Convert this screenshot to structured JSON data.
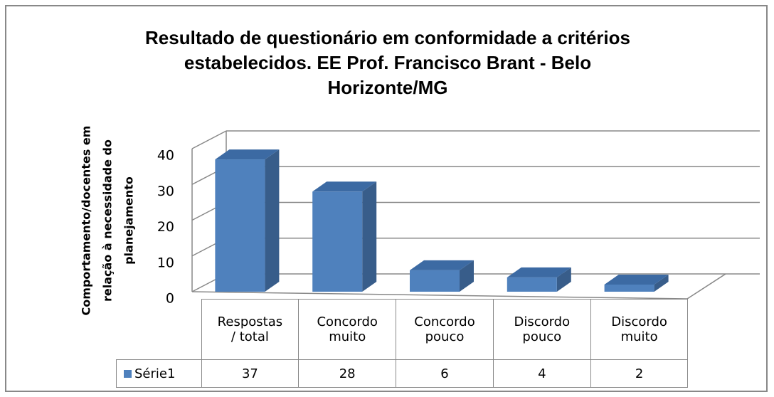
{
  "chart_data": {
    "type": "bar",
    "title": [
      "Resultado de questionário em conformidade a critérios",
      "estabelecidos. EE Prof. Francisco Brant - Belo",
      "Horizonte/MG"
    ],
    "y_label": [
      "Comportamento/docentes  em",
      "relação à necessidade do",
      "planejamento"
    ],
    "categories": [
      "Respostas\n/  total",
      "Concordo\nmuito",
      "Concordo\npouco",
      "Discordo\npouco",
      "Discordo\nmuito"
    ],
    "series": [
      {
        "name": "Série1",
        "color": "#4f81bd",
        "values": [
          37,
          28,
          6,
          4,
          2
        ]
      }
    ],
    "ylim": [
      0,
      40
    ],
    "yticks": [
      0,
      10,
      20,
      30,
      40
    ],
    "grid": true
  }
}
